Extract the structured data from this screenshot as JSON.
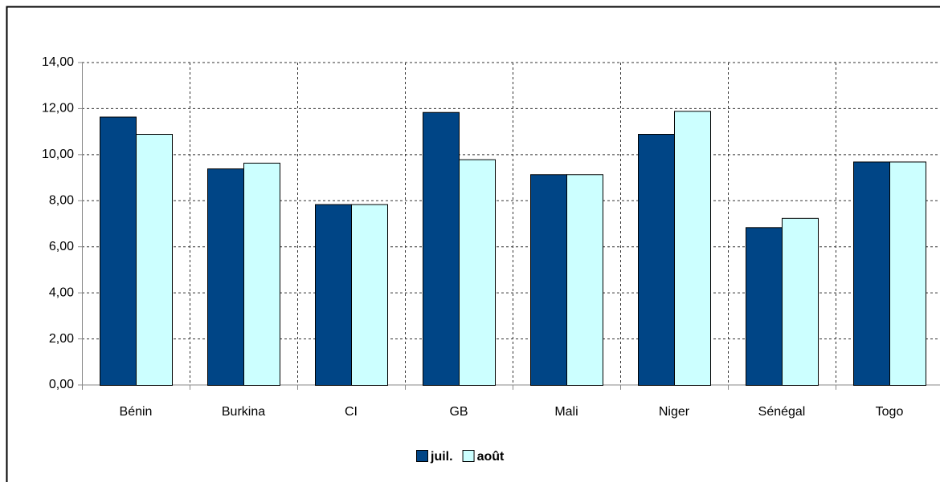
{
  "chart_data": {
    "type": "bar",
    "categories": [
      "Bénin",
      "Burkina",
      "CI",
      "GB",
      "Mali",
      "Niger",
      "Sénégal",
      "Togo"
    ],
    "series": [
      {
        "name": "juil.",
        "color": "#004586",
        "values": [
          11.65,
          9.4,
          7.85,
          11.85,
          9.15,
          10.9,
          6.85,
          9.7
        ]
      },
      {
        "name": "août",
        "color": "#ccffff",
        "values": [
          10.9,
          9.65,
          7.85,
          9.8,
          9.15,
          11.9,
          7.25,
          9.7
        ]
      }
    ],
    "ylim": [
      0,
      14
    ],
    "yticks": [
      {
        "value": 0,
        "label": "0,00"
      },
      {
        "value": 2,
        "label": "2,00"
      },
      {
        "value": 4,
        "label": "4,00"
      },
      {
        "value": 6,
        "label": "6,00"
      },
      {
        "value": 8,
        "label": "8,00"
      },
      {
        "value": 10,
        "label": "10,00"
      },
      {
        "value": 12,
        "label": "12,00"
      },
      {
        "value": 14,
        "label": "14,00"
      }
    ],
    "grid": true,
    "legend": "bottom"
  }
}
